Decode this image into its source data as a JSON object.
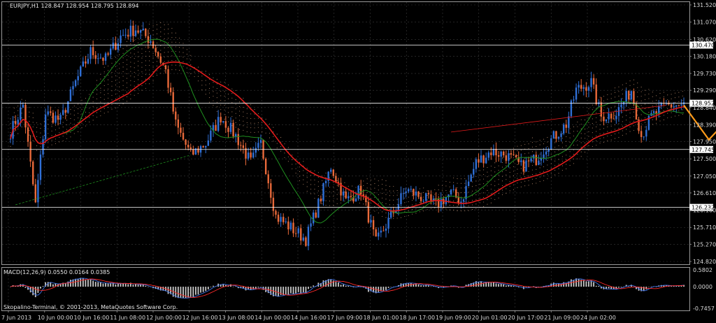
{
  "window": {
    "symbol_info": "EURJPY,H1  128.847 128.954 128.795 128.894",
    "copyright": "Skopalino-Terminal, © 2001-2013, MetaQuotes Software Corp."
  },
  "colors": {
    "background": "#000000",
    "grid": "#3a3a3a",
    "candle_up": "#2f6fd6",
    "candle_down": "#e8693a",
    "ma_red": "#e21b1b",
    "ma_green": "#1f8f1f",
    "cloud": "#f2b48c",
    "forecast": "#ff9a1a",
    "macd_hist": "#c8c8c8",
    "macd_signal_red": "#ff2a2a",
    "macd_main_blue": "#3d6fe0",
    "hline": "#ffffff",
    "price_tag_bg": "#ffffff"
  },
  "chart_data": [
    {
      "type": "candlestick",
      "title": "EURJPY,H1",
      "ylim": [
        124.82,
        131.52
      ],
      "y_ticks": [
        "131.520",
        "131.070",
        "130.620",
        "130.180",
        "129.730",
        "129.290",
        "128.840",
        "128.390",
        "127.950",
        "127.500",
        "127.050",
        "126.610",
        "126.160",
        "125.710",
        "125.270",
        "124.820"
      ],
      "x_ticks": [
        "7 Jun 2013",
        "10 Jun 00:00",
        "10 Jun 16:00",
        "11 Jun 08:00",
        "12 Jun 00:00",
        "12 Jun 16:00",
        "13 Jun 08:00",
        "14 Jun 00:00",
        "14 Jun 16:00",
        "17 Jun 09:00",
        "18 Jun 01:00",
        "18 Jun 17:00",
        "19 Jun 09:00",
        "20 Jun 01:00",
        "20 Jun 17:00",
        "21 Jun 09:00",
        "24 Jun 02:00"
      ],
      "horizontal_levels": [
        "130.470",
        "128.952",
        "127.745",
        "126.232"
      ],
      "close_path": [
        {
          "x": 0,
          "y": 128.2
        },
        {
          "x": 5,
          "y": 128.9
        },
        {
          "x": 10,
          "y": 126.3
        },
        {
          "x": 14,
          "y": 128.7
        },
        {
          "x": 20,
          "y": 128.5
        },
        {
          "x": 26,
          "y": 129.5
        },
        {
          "x": 32,
          "y": 130.3
        },
        {
          "x": 38,
          "y": 130.1
        },
        {
          "x": 44,
          "y": 130.7
        },
        {
          "x": 50,
          "y": 130.9
        },
        {
          "x": 56,
          "y": 130.6
        },
        {
          "x": 62,
          "y": 129.8
        },
        {
          "x": 66,
          "y": 128.4
        },
        {
          "x": 72,
          "y": 127.6
        },
        {
          "x": 78,
          "y": 127.9
        },
        {
          "x": 84,
          "y": 128.6
        },
        {
          "x": 90,
          "y": 128.1
        },
        {
          "x": 96,
          "y": 127.4
        },
        {
          "x": 100,
          "y": 127.9
        },
        {
          "x": 106,
          "y": 126.0
        },
        {
          "x": 112,
          "y": 125.7
        },
        {
          "x": 118,
          "y": 125.4
        },
        {
          "x": 124,
          "y": 126.5
        },
        {
          "x": 128,
          "y": 127.3
        },
        {
          "x": 134,
          "y": 126.4
        },
        {
          "x": 140,
          "y": 126.7
        },
        {
          "x": 146,
          "y": 125.3
        },
        {
          "x": 152,
          "y": 126.0
        },
        {
          "x": 158,
          "y": 126.7
        },
        {
          "x": 164,
          "y": 126.5
        },
        {
          "x": 170,
          "y": 126.3
        },
        {
          "x": 176,
          "y": 126.6
        },
        {
          "x": 180,
          "y": 126.4
        },
        {
          "x": 186,
          "y": 127.4
        },
        {
          "x": 192,
          "y": 127.7
        },
        {
          "x": 198,
          "y": 127.6
        },
        {
          "x": 204,
          "y": 127.3
        },
        {
          "x": 210,
          "y": 127.5
        },
        {
          "x": 216,
          "y": 128.0
        },
        {
          "x": 222,
          "y": 128.4
        },
        {
          "x": 226,
          "y": 129.3
        },
        {
          "x": 232,
          "y": 129.5
        },
        {
          "x": 236,
          "y": 128.6
        },
        {
          "x": 242,
          "y": 128.7
        },
        {
          "x": 248,
          "y": 129.3
        },
        {
          "x": 252,
          "y": 128.1
        },
        {
          "x": 256,
          "y": 128.6
        },
        {
          "x": 262,
          "y": 128.9
        },
        {
          "x": 268,
          "y": 128.9
        }
      ],
      "forecast_path": [
        {
          "x": 269,
          "y": 128.9
        },
        {
          "x": 279,
          "y": 128.0
        },
        {
          "x": 289,
          "y": 128.7
        }
      ]
    },
    {
      "type": "histogram",
      "title": "MACD(12,26,9) 0.0550 0.0164 0.0385",
      "ylim": [
        -0.7457,
        0.5802
      ],
      "y_ticks": [
        "0.5802",
        "0.0000",
        "-0.7457"
      ]
    }
  ]
}
